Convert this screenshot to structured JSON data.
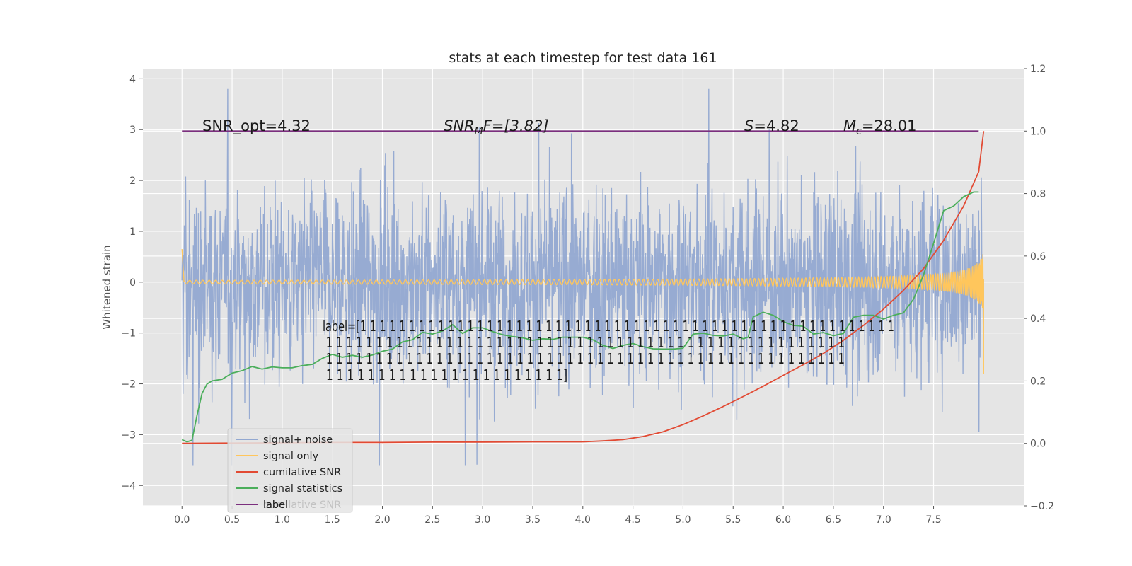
{
  "chart_data": {
    "type": "line",
    "title": "stats at each timestep for test data 161",
    "ylabel": "Whitened strain",
    "ylabel_right": "",
    "xlim": [
      -0.39,
      8.4
    ],
    "ylim": [
      -4.4,
      4.2
    ],
    "ylim_right": [
      -0.2,
      1.2
    ],
    "x_ticks": [
      "0.0",
      "0.5",
      "1.0",
      "1.5",
      "2.0",
      "2.5",
      "3.0",
      "3.5",
      "4.0",
      "4.5",
      "5.0",
      "5.5",
      "6.0",
      "6.5",
      "7.0",
      "7.5"
    ],
    "y_ticks": [
      "−4",
      "−3",
      "−2",
      "−1",
      "0",
      "1",
      "2",
      "3",
      "4"
    ],
    "y_ticks_right": [
      "−0.2",
      "0.0",
      "0.2",
      "0.4",
      "0.6",
      "0.8",
      "1.0",
      "1.2"
    ],
    "grid": true,
    "annotations": {
      "snr_opt": "SNR_opt=4.32",
      "snr_mf_base": "SNR",
      "snr_mf_sub": "M",
      "snr_mf_rest": "F=[3.82]",
      "s_var": "S",
      "s_rest": "=4.82",
      "mc_base": "M",
      "mc_sub": "c",
      "mc_rest": "=28.01",
      "label_lines": [
        "label=[1 1 1 1 1 1 1 1 1 1 1 1 1 1 1 1 1 1 1 1 1 1 1 1 1 1 1 1 1 1 1 1 1 1 1 1 1 1 1 1 1 1 1 1 1 1 1 1 1 1 1 1 1 1 1",
        " 1 1 1 1 1 1 1 1 1 1 1 1 1 1 1 1 1 1 1 1 1 1 1 1 1 1 1 1 1 1 1 1 1 1 1 1 1 1 1 1 1 1 1 1 1 1 1 1 1 1 1 1",
        " 1 1 1 1 1 1 1 1 1 1 1 1 1 1 1 1 1 1 1 1 1 1 1 1 1 1 1 1 1 1 1 1 1 1 1 1 1 1 1 1 1 1 1 1 1 1 1 1 1 1 1 1",
        " 1 1 1 1 1 1 1 1 1 1 1 1 1 1 1 1 1 1 1 1 1 1 1]"
      ]
    },
    "legend_position": "lower-left",
    "series": [
      {
        "name": "signal+ noise",
        "color": "#92a8d1",
        "axis": "left",
        "style": "noise",
        "x_range": [
          0.0,
          8.0
        ],
        "amplitude_range": [
          -3.6,
          3.8
        ]
      },
      {
        "name": "signal only",
        "color": "#ffc65c",
        "axis": "left",
        "style": "chirp",
        "x_range": [
          0.0,
          8.0
        ]
      },
      {
        "name": "cumilative SNR",
        "color": "#e24a33",
        "axis": "right",
        "x": [
          0.0,
          0.5,
          1.0,
          1.5,
          2.0,
          2.5,
          3.0,
          3.5,
          4.0,
          4.2,
          4.4,
          4.6,
          4.8,
          5.0,
          5.2,
          5.4,
          5.6,
          5.8,
          6.0,
          6.2,
          6.4,
          6.6,
          6.8,
          7.0,
          7.2,
          7.4,
          7.6,
          7.8,
          7.95,
          8.0
        ],
        "y": [
          0.0,
          0.001,
          0.002,
          0.003,
          0.003,
          0.004,
          0.004,
          0.005,
          0.005,
          0.008,
          0.012,
          0.022,
          0.037,
          0.06,
          0.088,
          0.118,
          0.15,
          0.183,
          0.218,
          0.252,
          0.288,
          0.33,
          0.378,
          0.43,
          0.49,
          0.56,
          0.65,
          0.76,
          0.87,
          1.0
        ]
      },
      {
        "name": "signal statistics",
        "color": "#4bae5b",
        "axis": "right",
        "x": [
          0.0,
          0.05,
          0.1,
          0.15,
          0.2,
          0.25,
          0.3,
          0.4,
          0.5,
          0.6,
          0.7,
          0.8,
          0.9,
          1.0,
          1.1,
          1.2,
          1.3,
          1.4,
          1.5,
          1.6,
          1.7,
          1.8,
          1.9,
          2.0,
          2.1,
          2.2,
          2.3,
          2.4,
          2.5,
          2.6,
          2.7,
          2.8,
          2.9,
          3.0,
          3.1,
          3.2,
          3.3,
          3.4,
          3.5,
          3.6,
          3.7,
          3.8,
          3.9,
          4.0,
          4.1,
          4.2,
          4.3,
          4.4,
          4.5,
          4.6,
          4.7,
          4.8,
          4.9,
          5.0,
          5.1,
          5.2,
          5.3,
          5.4,
          5.5,
          5.6,
          5.65,
          5.7,
          5.8,
          5.9,
          6.0,
          6.1,
          6.2,
          6.3,
          6.4,
          6.5,
          6.6,
          6.7,
          6.8,
          6.9,
          7.0,
          7.1,
          7.2,
          7.3,
          7.4,
          7.5,
          7.6,
          7.7,
          7.8,
          7.9,
          7.95
        ],
        "y": [
          0.012,
          0.005,
          0.01,
          0.09,
          0.16,
          0.19,
          0.2,
          0.205,
          0.225,
          0.233,
          0.246,
          0.238,
          0.245,
          0.242,
          0.242,
          0.249,
          0.253,
          0.272,
          0.285,
          0.276,
          0.282,
          0.276,
          0.283,
          0.295,
          0.302,
          0.325,
          0.332,
          0.356,
          0.35,
          0.36,
          0.38,
          0.352,
          0.37,
          0.37,
          0.358,
          0.348,
          0.342,
          0.338,
          0.33,
          0.335,
          0.333,
          0.34,
          0.34,
          0.34,
          0.332,
          0.314,
          0.304,
          0.314,
          0.32,
          0.31,
          0.303,
          0.302,
          0.302,
          0.305,
          0.35,
          0.353,
          0.346,
          0.344,
          0.35,
          0.335,
          0.34,
          0.405,
          0.42,
          0.41,
          0.39,
          0.378,
          0.375,
          0.35,
          0.355,
          0.345,
          0.352,
          0.404,
          0.41,
          0.41,
          0.398,
          0.41,
          0.418,
          0.462,
          0.54,
          0.64,
          0.745,
          0.76,
          0.79,
          0.805,
          0.805
        ]
      },
      {
        "name": "label",
        "color": "#7b2f7e",
        "axis": "right",
        "x": [
          0.0,
          7.95
        ],
        "y": [
          1.0,
          1.0
        ]
      }
    ],
    "legend_extra_text": "cumilative SNR"
  }
}
